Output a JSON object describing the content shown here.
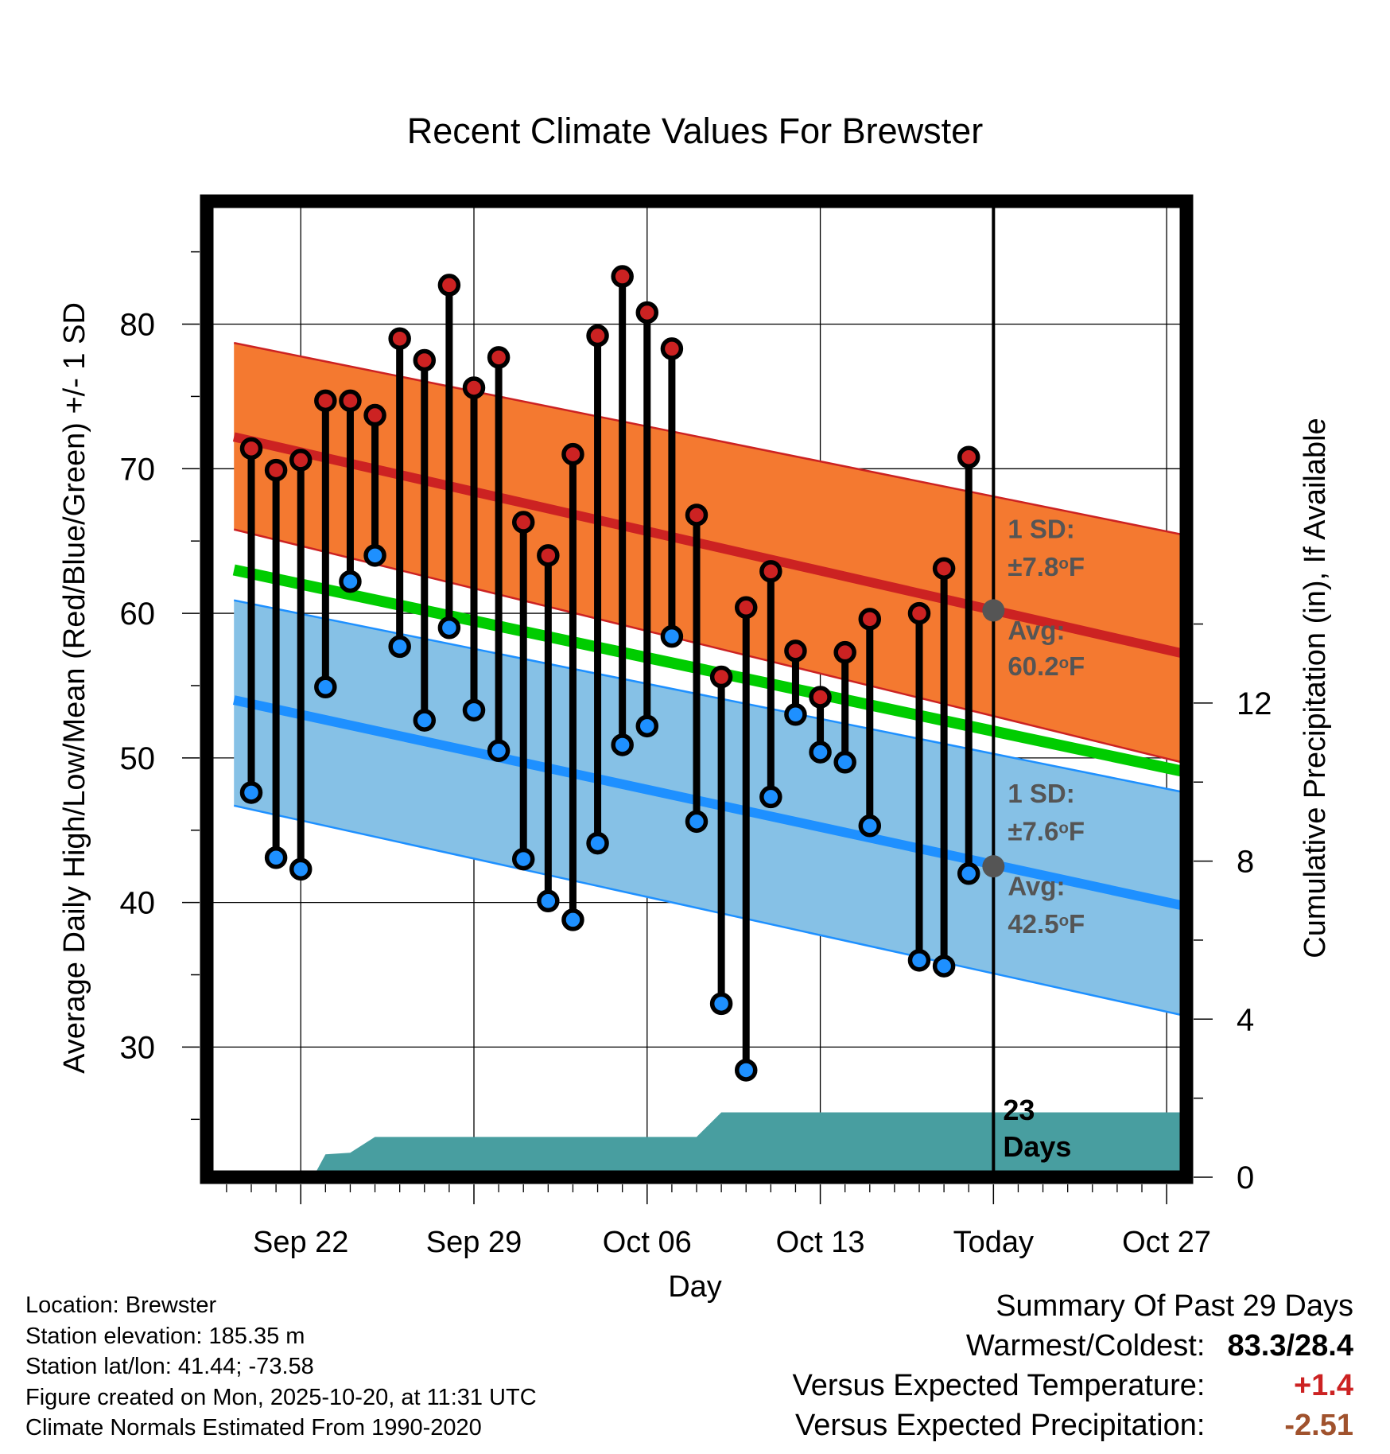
{
  "chart_data": {
    "type": "line",
    "title": "Recent Climate Values For Brewster",
    "xlabel": "Day",
    "ylabel": "Average Daily High/Low/Mean (Red/Blue/Green) +/- 1 SD",
    "y2label": "Cumulative Precipitation (in), If Available",
    "xlim": [
      -3.8,
      35.8
    ],
    "ylim": [
      21.0,
      88.5
    ],
    "y2lim": [
      0,
      24.7
    ],
    "xticks": [
      {
        "day": 0,
        "label": "Sep 22"
      },
      {
        "day": 7,
        "label": "Sep 29"
      },
      {
        "day": 14,
        "label": "Oct 06"
      },
      {
        "day": 21,
        "label": "Oct 13"
      },
      {
        "day": 28,
        "label": "Today"
      },
      {
        "day": 35,
        "label": "Oct 27"
      }
    ],
    "yticks": [
      30,
      40,
      50,
      60,
      70,
      80
    ],
    "y2ticks": [
      0,
      4,
      8,
      12
    ],
    "today_day": 28,
    "normals": {
      "x_range": [
        -2.7,
        37.5
      ],
      "high_mean": [
        72.2,
        56.5
      ],
      "high_sd_upper": [
        78.7,
        64.8
      ],
      "high_sd_lower": [
        65.8,
        48.9
      ],
      "mean": [
        63.0,
        48.4
      ],
      "low_mean": [
        54.0,
        39.1
      ],
      "low_sd_upper": [
        60.9,
        47.0
      ],
      "low_sd_lower": [
        46.7,
        31.5
      ]
    },
    "series": [
      {
        "name": "Daily High",
        "color": "#cc2222",
        "x": [
          -2,
          -1,
          0,
          1,
          2,
          3,
          4,
          5,
          6,
          7,
          8,
          9,
          10,
          11,
          12,
          13,
          14,
          15,
          16,
          17,
          18,
          19,
          20,
          21,
          22,
          23,
          25,
          26,
          27
        ],
        "values": [
          71.4,
          69.9,
          70.6,
          74.7,
          74.7,
          73.7,
          79.0,
          77.5,
          82.7,
          75.6,
          77.7,
          66.3,
          64.0,
          71.0,
          79.2,
          83.3,
          80.8,
          78.3,
          66.8,
          55.6,
          60.4,
          62.9,
          57.4,
          54.2,
          57.3,
          59.6,
          60.0,
          63.1,
          70.8
        ]
      },
      {
        "name": "Daily Low",
        "color": "#1e90ff",
        "x": [
          -2,
          -1,
          0,
          1,
          2,
          3,
          4,
          5,
          6,
          7,
          8,
          9,
          10,
          11,
          12,
          13,
          14,
          15,
          16,
          17,
          18,
          19,
          20,
          21,
          22,
          23,
          25,
          26,
          27
        ],
        "values": [
          47.6,
          43.1,
          42.3,
          54.9,
          62.2,
          64.0,
          57.7,
          52.6,
          59.0,
          53.3,
          50.5,
          43.0,
          40.1,
          38.8,
          44.1,
          50.9,
          52.2,
          58.4,
          45.6,
          33.0,
          28.4,
          47.3,
          53.0,
          50.4,
          49.7,
          45.3,
          36.0,
          35.6,
          42.0
        ]
      },
      {
        "name": "Cumulative Precipitation",
        "color": "#489ea0",
        "x": [
          0.5,
          1.0,
          2.0,
          3.0,
          16.0,
          17.0,
          35.8
        ],
        "values": [
          0,
          0.58,
          0.62,
          1.02,
          1.02,
          1.64,
          1.64
        ]
      }
    ],
    "annotations": {
      "high_sd": "1 SD:",
      "high_sd_value": "±7.8°F",
      "high_avg": "Avg:",
      "high_avg_value": "60.2°F",
      "high_avg_point": 60.2,
      "low_sd": "1 SD:",
      "low_sd_value": "±7.6°F",
      "low_avg": "Avg:",
      "low_avg_value": "42.5°F",
      "low_avg_point": 42.5,
      "days": "23",
      "days_label": "Days"
    },
    "colors": {
      "high_band": "#f47930",
      "high_line": "#cc2222",
      "low_band": "#86c1e6",
      "low_line": "#1e90ff",
      "mean_line": "#00cc00",
      "precip": "#489ea0",
      "annotation_text": "#555555"
    }
  },
  "footer": {
    "location": "Location: Brewster",
    "elevation": "Station elevation: 185.35 m",
    "latlon": "Station lat/lon: 41.44; -73.58",
    "created": "Figure created on Mon, 2025-10-20, at 11:31 UTC",
    "normals": "Climate Normals Estimated From 1990-2020"
  },
  "summary": {
    "title": "Summary Of Past 29 Days",
    "warm_cold_label": "Warmest/Coldest:",
    "warm_cold_value": "83.3/28.4",
    "temp_label": "Versus Expected Temperature:",
    "temp_value": "+1.4",
    "temp_color": "#cc2222",
    "precip_label": "Versus Expected Precipitation:",
    "precip_value": "-2.51",
    "precip_color": "#a0522d"
  }
}
